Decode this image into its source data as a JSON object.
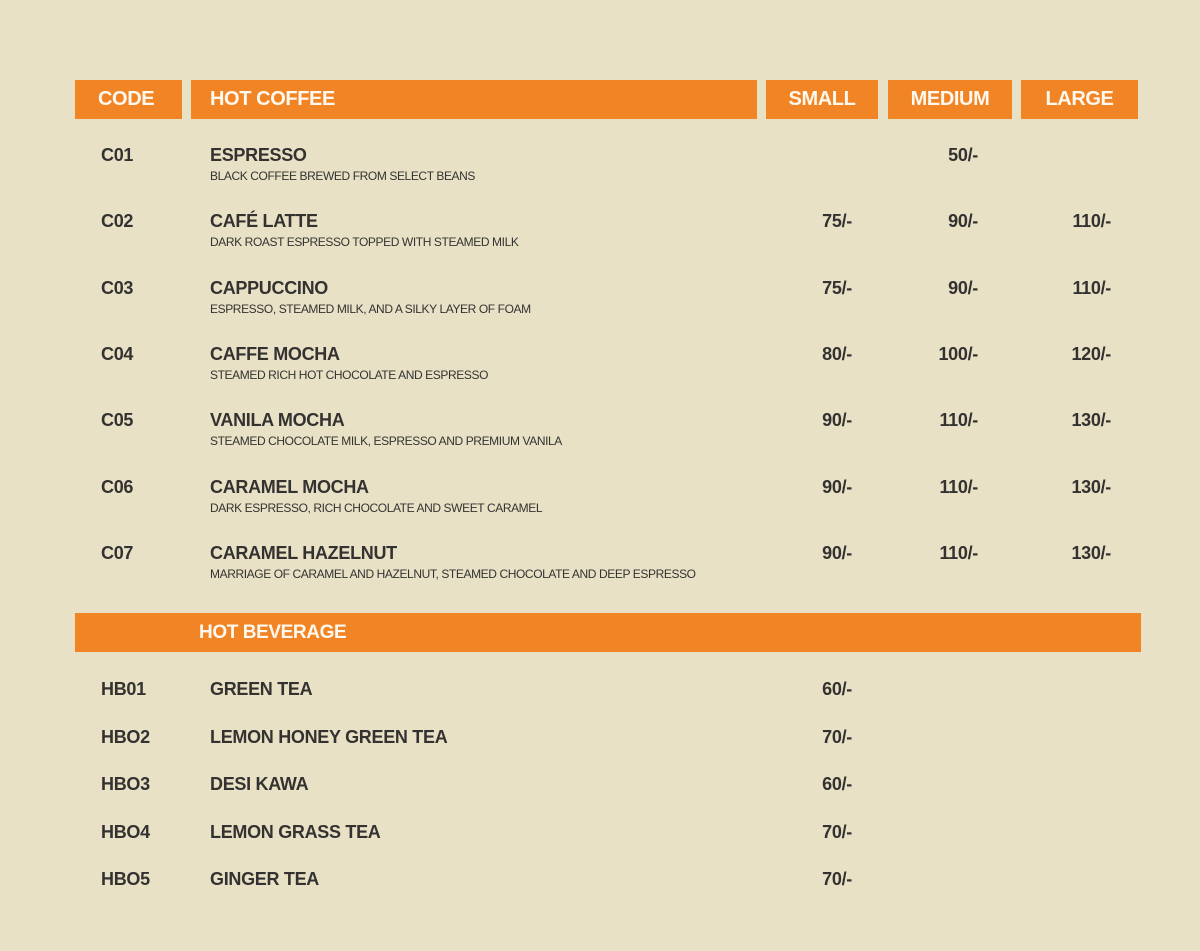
{
  "colors": {
    "background": "#e8e1c5",
    "accent": "#f18526",
    "text": "#333231"
  },
  "header": {
    "code": "CODE",
    "section": "HOT COFFEE",
    "small": "SMALL",
    "medium": "MEDIUM",
    "large": "LARGE"
  },
  "coffee": [
    {
      "code": "C01",
      "name": "ESPRESSO",
      "desc": "BLACK COFFEE BREWED FROM SELECT  BEANS",
      "small": "",
      "medium": "50/-",
      "large": ""
    },
    {
      "code": "C02",
      "name": "CAFÉ LATTE",
      "desc": "DARK ROAST ESPRESSO TOPPED WITH STEAMED MILK",
      "small": "75/-",
      "medium": "90/-",
      "large": "110/-"
    },
    {
      "code": "C03",
      "name": "CAPPUCCINO",
      "desc": "ESPRESSO, STEAMED MILK, AND A SILKY LAYER OF FOAM",
      "small": "75/-",
      "medium": "90/-",
      "large": "110/-"
    },
    {
      "code": "C04",
      "name": "CAFFE MOCHA",
      "desc": "STEAMED RICH HOT CHOCOLATE AND ESPRESSO",
      "small": "80/-",
      "medium": "100/-",
      "large": "120/-"
    },
    {
      "code": "C05",
      "name": "VANILA MOCHA",
      "desc": "STEAMED  CHOCOLATE  MILK,  ESPRESSO AND PREMIUM VANILA",
      "small": "90/-",
      "medium": "110/-",
      "large": "130/-"
    },
    {
      "code": "C06",
      "name": "CARAMEL MOCHA",
      "desc": "DARK ESPRESSO, RICH CHOCOLATE AND SWEET CARAMEL",
      "small": "90/-",
      "medium": "110/-",
      "large": "130/-"
    },
    {
      "code": "C07",
      "name": "CARAMEL HAZELNUT",
      "desc": "MARRIAGE OF CARAMEL AND HAZELNUT, STEAMED CHOCOLATE AND DEEP ESPRESSO",
      "small": "90/-",
      "medium": "110/-",
      "large": "130/-"
    }
  ],
  "beverage_header": "HOT BEVERAGE",
  "beverages": [
    {
      "code": "HB01",
      "name": "GREEN TEA",
      "small": "60/-"
    },
    {
      "code": "HBO2",
      "name": "LEMON HONEY GREEN TEA",
      "small": "70/-"
    },
    {
      "code": "HBO3",
      "name": "DESI KAWA",
      "small": "60/-"
    },
    {
      "code": "HBO4",
      "name": "LEMON GRASS TEA",
      "small": "70/-"
    },
    {
      "code": "HBO5",
      "name": "GINGER TEA",
      "small": "70/-"
    }
  ]
}
